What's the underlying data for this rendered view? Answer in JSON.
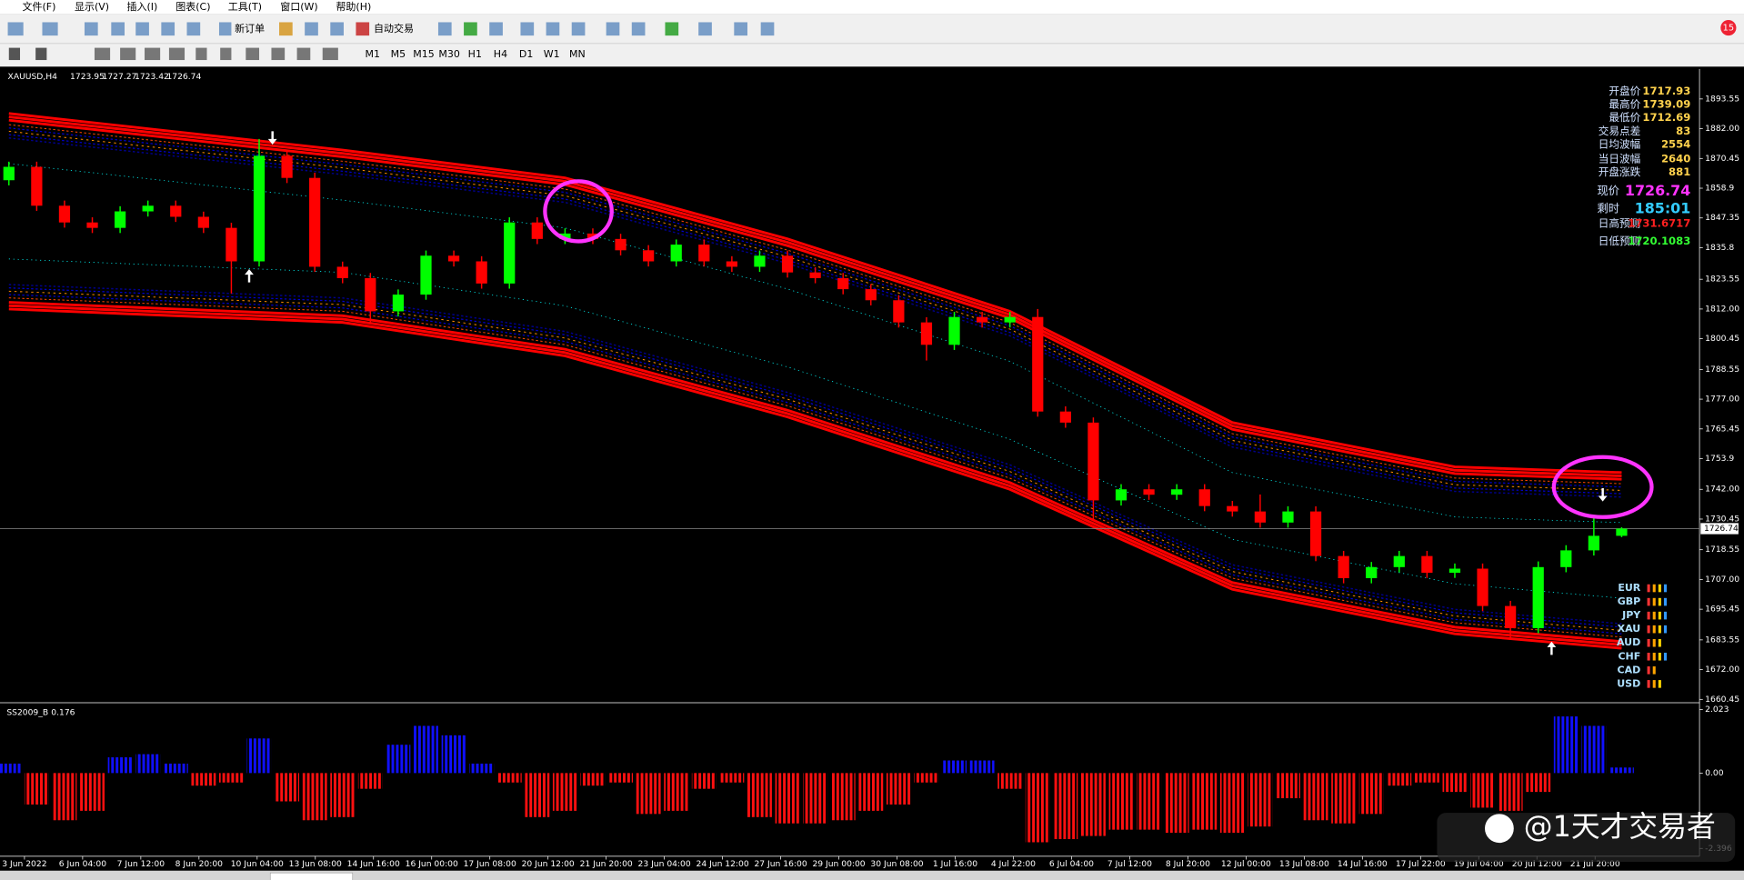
{
  "menu": [
    "文件(F)",
    "显示(V)",
    "插入(I)",
    "图表(C)",
    "工具(T)",
    "窗口(W)",
    "帮助(H)"
  ],
  "toolbar": [
    "新订单",
    "自动交易"
  ],
  "timeframes": [
    "M1",
    "M5",
    "M15",
    "M30",
    "H1",
    "H4",
    "D1",
    "W1",
    "MN"
  ],
  "notification": "15",
  "watermark": "@1天才交易者",
  "info_panel": {
    "rows": [
      {
        "label": "开盘价",
        "value": 1717.93,
        "color": "#ffd24d"
      },
      {
        "label": "最高价",
        "value": 1739.09,
        "color": "#ffd24d"
      },
      {
        "label": "最低价",
        "value": 1712.69,
        "color": "#ffd24d"
      },
      {
        "label": "交易点差",
        "value": 83,
        "color": "#ffd24d"
      },
      {
        "label": "日均波幅",
        "value": 2554,
        "color": "#ffd24d"
      },
      {
        "label": "当日波幅",
        "value": 2640,
        "color": "#ffd24d"
      },
      {
        "label": "开盘涨跌",
        "value": 881,
        "color": "#ffd24d"
      },
      {
        "label": "现价",
        "value": 1726.74,
        "color": "#ff33ff"
      },
      {
        "label": "剩时",
        "value": "185:01",
        "color": "#33ccff"
      },
      {
        "label": "日高预测",
        "value": 1731.6717,
        "color": "#ff2020"
      },
      {
        "label": "日低预测",
        "value": 1720.1083,
        "color": "#33ff33"
      }
    ]
  },
  "currencies": [
    {
      "name": "EUR",
      "bars": 4
    },
    {
      "name": "GBP",
      "bars": 4
    },
    {
      "name": "JPY",
      "bars": 4
    },
    {
      "name": "XAU",
      "bars": 4
    },
    {
      "name": "AUD",
      "bars": 3
    },
    {
      "name": "CHF",
      "bars": 4
    },
    {
      "name": "CAD",
      "bars": 2
    },
    {
      "name": "USD",
      "bars": 3
    }
  ],
  "chart_data": [
    {
      "type": "candlestick",
      "title": "XAUUSD,H4",
      "up_color": "#00ff00",
      "down_color": "#ff0000",
      "time_labels": [
        "3 Jun 2022",
        "6 Jun 04:00",
        "7 Jun 12:00",
        "8 Jun 20:00",
        "10 Jun 04:00",
        "13 Jun 08:00",
        "14 Jun 16:00",
        "16 Jun 00:00",
        "17 Jun 08:00",
        "20 Jun 12:00",
        "21 Jun 20:00",
        "23 Jun 04:00",
        "24 Jun 12:00",
        "27 Jun 16:00",
        "29 Jun 00:00",
        "30 Jun 08:00",
        "1 Jul 16:00",
        "4 Jul 22:00",
        "6 Jul 04:00",
        "7 Jul 12:00",
        "8 Jul 20:00",
        "12 Jul 00:00",
        "13 Jul 08:00",
        "14 Jul 16:00",
        "17 Jul 22:00",
        "19 Jul 04:00",
        "20 Jul 12:00",
        "21 Jul 20:00"
      ],
      "open": [
        1862.0,
        1867.2,
        1852.1,
        1845.6,
        1843.5,
        1849.9,
        1852.1,
        1847.8,
        1843.5,
        1830.5,
        1871.5,
        1862.9,
        1828.4,
        1824.0,
        1811.1,
        1817.6,
        1832.7,
        1830.5,
        1821.9,
        1845.6,
        1839.2,
        1841.3,
        1839.2,
        1834.8,
        1830.5,
        1837.0,
        1830.5,
        1828.4,
        1832.7,
        1826.2,
        1824.0,
        1819.7,
        1815.4,
        1806.8,
        1798.1,
        1808.9,
        1806.8,
        1808.9,
        1772.2,
        1767.9,
        1737.7,
        1742.0,
        1739.9,
        1742.0,
        1735.5,
        1733.4,
        1729.1,
        1733.4,
        1716.1,
        1707.5,
        1711.8,
        1716.1,
        1709.6,
        1711.2,
        1696.7,
        1688.1,
        1711.8,
        1718.3,
        1723.95
      ],
      "high": [
        1869.2,
        1869.2,
        1854.1,
        1847.6,
        1851.9,
        1854.1,
        1854.1,
        1849.8,
        1845.5,
        1878.0,
        1873.5,
        1864.9,
        1830.4,
        1826.0,
        1819.6,
        1834.7,
        1834.7,
        1832.5,
        1847.6,
        1847.6,
        1843.3,
        1843.3,
        1841.2,
        1836.8,
        1839.0,
        1839.0,
        1832.5,
        1834.7,
        1834.7,
        1828.2,
        1826.0,
        1821.7,
        1817.4,
        1808.8,
        1810.9,
        1810.9,
        1810.9,
        1812.0,
        1774.2,
        1769.9,
        1744.0,
        1744.0,
        1744.0,
        1744.0,
        1737.5,
        1740.0,
        1735.4,
        1735.4,
        1718.1,
        1713.8,
        1718.1,
        1718.1,
        1713.2,
        1713.2,
        1698.7,
        1714.0,
        1720.3,
        1731.0,
        1727.27
      ],
      "low": [
        1860.0,
        1850.1,
        1843.6,
        1841.5,
        1841.5,
        1847.9,
        1845.8,
        1841.5,
        1818.0,
        1828.5,
        1860.9,
        1826.4,
        1822.0,
        1806.0,
        1809.1,
        1815.6,
        1828.5,
        1819.9,
        1819.9,
        1837.2,
        1837.2,
        1837.2,
        1832.8,
        1828.5,
        1828.5,
        1828.5,
        1826.4,
        1826.4,
        1824.2,
        1822.0,
        1817.7,
        1813.4,
        1804.8,
        1792.0,
        1796.1,
        1804.8,
        1804.8,
        1770.2,
        1765.9,
        1730.0,
        1735.7,
        1737.9,
        1737.9,
        1733.5,
        1731.4,
        1727.1,
        1727.1,
        1714.1,
        1705.5,
        1705.5,
        1709.8,
        1707.6,
        1707.6,
        1694.7,
        1683.5,
        1686.1,
        1709.8,
        1716.3,
        1723.42
      ],
      "close": [
        1867.2,
        1852.1,
        1845.6,
        1843.5,
        1849.9,
        1852.1,
        1847.8,
        1843.5,
        1830.5,
        1871.5,
        1862.9,
        1828.4,
        1824.0,
        1811.1,
        1817.6,
        1832.7,
        1830.5,
        1821.9,
        1845.6,
        1839.2,
        1841.3,
        1839.2,
        1834.8,
        1830.5,
        1837.0,
        1830.5,
        1828.4,
        1832.7,
        1826.2,
        1824.0,
        1819.7,
        1815.4,
        1806.8,
        1798.1,
        1808.9,
        1806.8,
        1808.9,
        1772.2,
        1767.9,
        1737.7,
        1742.0,
        1739.9,
        1742.0,
        1735.5,
        1733.4,
        1729.1,
        1733.4,
        1716.1,
        1707.5,
        1711.8,
        1716.1,
        1709.6,
        1711.2,
        1696.7,
        1688.1,
        1711.8,
        1718.3,
        1723.95,
        1726.74
      ],
      "bands": [
        {
          "x": [
            0,
            12,
            20,
            28,
            36,
            44,
            52,
            58
          ],
          "values": [
            1887.9,
            1873.7,
            1862.9,
            1839.2,
            1811.1,
            1767.9,
            1750.7,
            1748.5
          ],
          "color": "#ff0000"
        },
        {
          "x": [
            0,
            12,
            20,
            28,
            36,
            44,
            52,
            58
          ],
          "values": [
            1812.0,
            1806.8,
            1793.8,
            1770.1,
            1742.0,
            1703.2,
            1685.9,
            1680.3
          ],
          "color": "#ff0000"
        }
      ],
      "ylim": [
        1660.0,
        1905.2
      ],
      "yticks": [
        1893.55,
        {
          "value": 1882,
          "label": "1882.00"
        },
        1870.45,
        1858.9,
        1847.35,
        1835.8,
        1823.55,
        {
          "value": 1812,
          "label": "1812.00"
        },
        1800.45,
        1788.55,
        {
          "value": 1777,
          "label": "1777.00"
        },
        1765.45,
        1753.9,
        {
          "value": 1742,
          "label": "1742.00"
        },
        1730.45,
        1718.55,
        {
          "value": 1707,
          "label": "1707.00"
        },
        1695.45,
        1683.55,
        {
          "value": 1672,
          "label": "1672.00"
        },
        1660.45
      ]
    },
    {
      "type": "bar",
      "title": "SS2009_B",
      "pos_color": "#1010ff",
      "neg_color": "#ff1010",
      "values": [
        0.3,
        -1.0,
        -1.5,
        -1.2,
        0.5,
        0.6,
        0.3,
        -0.4,
        -0.3,
        1.1,
        -0.9,
        -1.5,
        -1.4,
        -0.5,
        0.9,
        1.5,
        1.2,
        0.3,
        -0.3,
        -1.4,
        -1.2,
        -0.4,
        -0.3,
        -1.3,
        -1.2,
        -0.5,
        -0.3,
        -1.4,
        -1.6,
        -1.6,
        -1.5,
        -1.2,
        -1.0,
        -0.3,
        0.4,
        0.4,
        -0.5,
        -2.2,
        -2.1,
        -2.0,
        -1.8,
        -1.8,
        -1.9,
        -1.8,
        -1.9,
        -1.7,
        -0.8,
        -1.5,
        -1.6,
        -1.3,
        -0.4,
        -0.3,
        -0.6,
        -1.1,
        -1.2,
        -0.6,
        1.8,
        1.5,
        0.176
      ],
      "ylim": [
        -2.396,
        2.023
      ],
      "yticks": [
        2.023,
        {
          "value": 0,
          "label": "0.00"
        },
        -2.396
      ]
    }
  ]
}
